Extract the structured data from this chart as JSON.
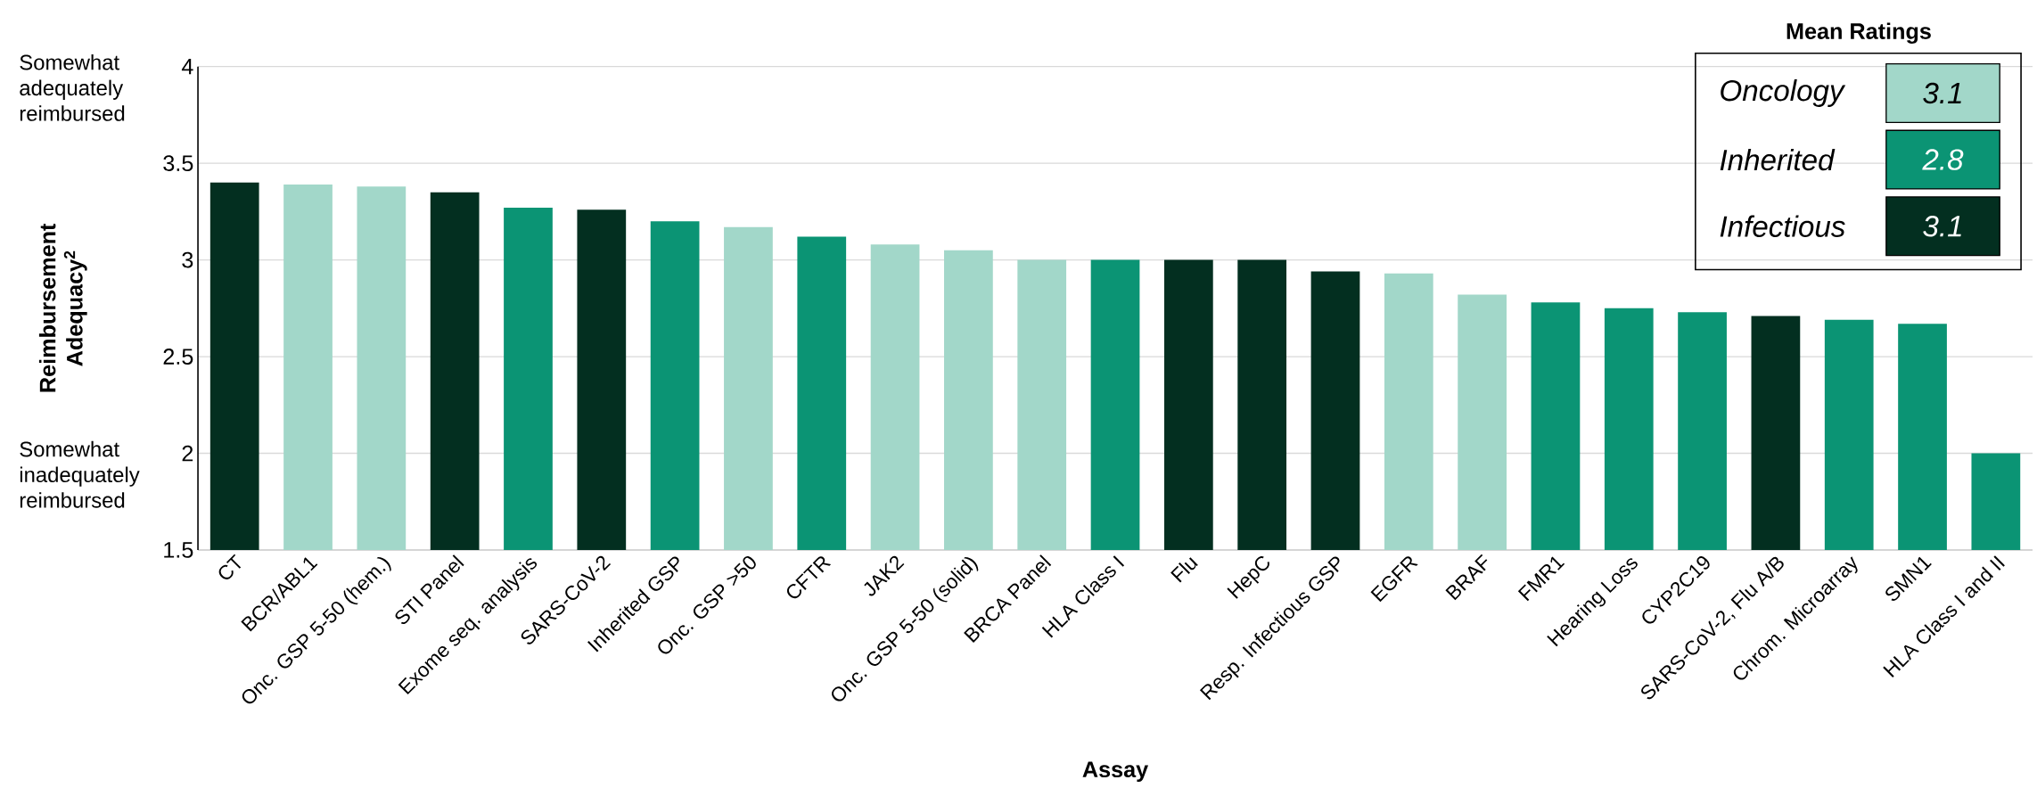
{
  "chart_data": {
    "type": "bar",
    "xlabel": "Assay",
    "ylabel": "Reimbursement Adequacy$^{2}$",
    "legend_title": "Mean Ratings",
    "categories": [
      "CT",
      "BCR/ABL1",
      "Onc. GSP 5-50 (hem.)",
      "STI Panel",
      "Exome seq. analysis",
      "SARS-CoV-2",
      "Inherited GSP",
      "Onc. GSP >50",
      "CFTR",
      "JAK2",
      "Onc. GSP 5-50 (solid)",
      "BRCA Panel",
      "HLA Class I",
      "Flu",
      "HepC",
      "Resp. Infectious GSP",
      "EGFR",
      "BRAF",
      "FMR1",
      "Hearing Loss",
      "CYP2C19",
      "SARS-CoV-2, Flu A/B",
      "Chrom. Microarray",
      "SMN1",
      "HLA Class I and II"
    ],
    "series": [
      {
        "name": "Oncology",
        "color": "#a2d7c9",
        "values": [
          null,
          3.39,
          3.38,
          null,
          null,
          null,
          null,
          3.17,
          null,
          3.08,
          3.05,
          3.0,
          null,
          null,
          null,
          null,
          2.93,
          2.82,
          null,
          null,
          null,
          null,
          null,
          null,
          null
        ]
      },
      {
        "name": "Inherited",
        "color": "#0b9474",
        "values": [
          null,
          null,
          null,
          null,
          3.27,
          null,
          3.2,
          null,
          3.12,
          null,
          null,
          null,
          3.0,
          null,
          null,
          null,
          null,
          null,
          2.78,
          2.75,
          2.73,
          null,
          2.69,
          2.67,
          2.0
        ]
      },
      {
        "name": "Infectious",
        "color": "#032f20",
        "values": [
          3.4,
          null,
          null,
          3.35,
          null,
          3.26,
          null,
          null,
          null,
          null,
          null,
          null,
          null,
          3.0,
          3.0,
          2.94,
          null,
          null,
          null,
          null,
          null,
          2.71,
          null,
          null,
          null
        ]
      }
    ],
    "ylim": [
      1.5,
      4
    ],
    "yticks": [
      1.5,
      2,
      2.5,
      3,
      3.5,
      4
    ],
    "grid": "y",
    "legend": "top right",
    "annotations": [
      "Somewhat adequately reimbursed",
      "Somewhat inadequately reimbursed",
      "3.1",
      "2.8",
      "3.1"
    ]
  }
}
